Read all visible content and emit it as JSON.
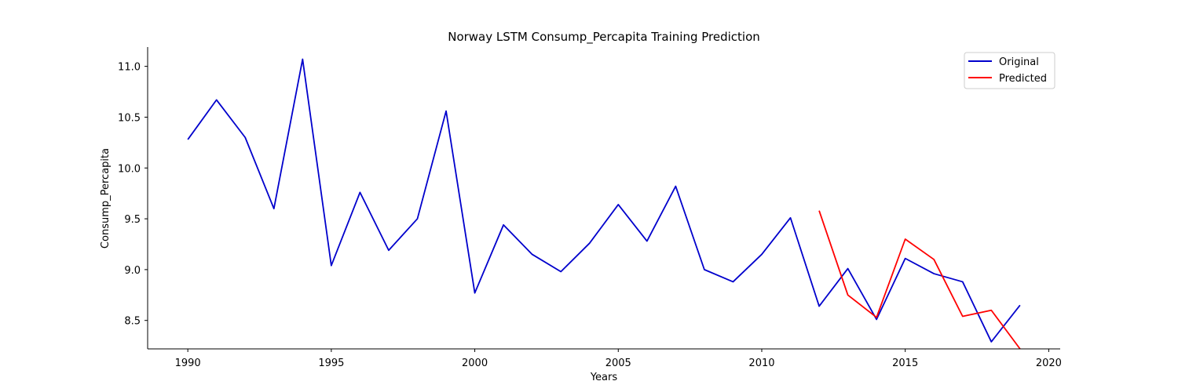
{
  "chart_data": {
    "type": "line",
    "title": "Norway LSTM Consump_Percapita Training Prediction",
    "xlabel": "Years",
    "ylabel": "Consump_Percapita",
    "xlim": [
      1988.6,
      2020.4
    ],
    "ylim": [
      8.22,
      11.19
    ],
    "xticks": [
      1990,
      1995,
      2000,
      2005,
      2010,
      2015,
      2020
    ],
    "yticks": [
      8.5,
      9.0,
      9.5,
      10.0,
      10.5,
      11.0
    ],
    "ytick_labels": [
      "8.5",
      "9.0",
      "9.5",
      "10.0",
      "10.5",
      "11.0"
    ],
    "grid": false,
    "legend_position": "top-right",
    "series": [
      {
        "name": "Original",
        "color": "#0000cc",
        "x": [
          1990,
          1991,
          1992,
          1993,
          1994,
          1995,
          1996,
          1997,
          1998,
          1999,
          2000,
          2001,
          2002,
          2003,
          2004,
          2005,
          2006,
          2007,
          2008,
          2009,
          2010,
          2011,
          2012,
          2013,
          2014,
          2015,
          2016,
          2017,
          2018,
          2019
        ],
        "y": [
          10.28,
          10.67,
          10.3,
          9.6,
          11.07,
          9.04,
          9.76,
          9.19,
          9.5,
          10.56,
          8.77,
          9.44,
          9.15,
          8.98,
          9.26,
          9.64,
          9.28,
          9.82,
          9.0,
          8.88,
          9.15,
          9.51,
          8.64,
          9.01,
          8.51,
          9.11,
          8.96,
          8.88,
          8.29,
          8.65
        ]
      },
      {
        "name": "Predicted",
        "color": "#ff0000",
        "x": [
          2012,
          2013,
          2014,
          2015,
          2016,
          2017,
          2018,
          2019
        ],
        "y": [
          9.58,
          8.75,
          8.53,
          9.3,
          9.1,
          8.54,
          8.6,
          8.22
        ]
      }
    ]
  }
}
